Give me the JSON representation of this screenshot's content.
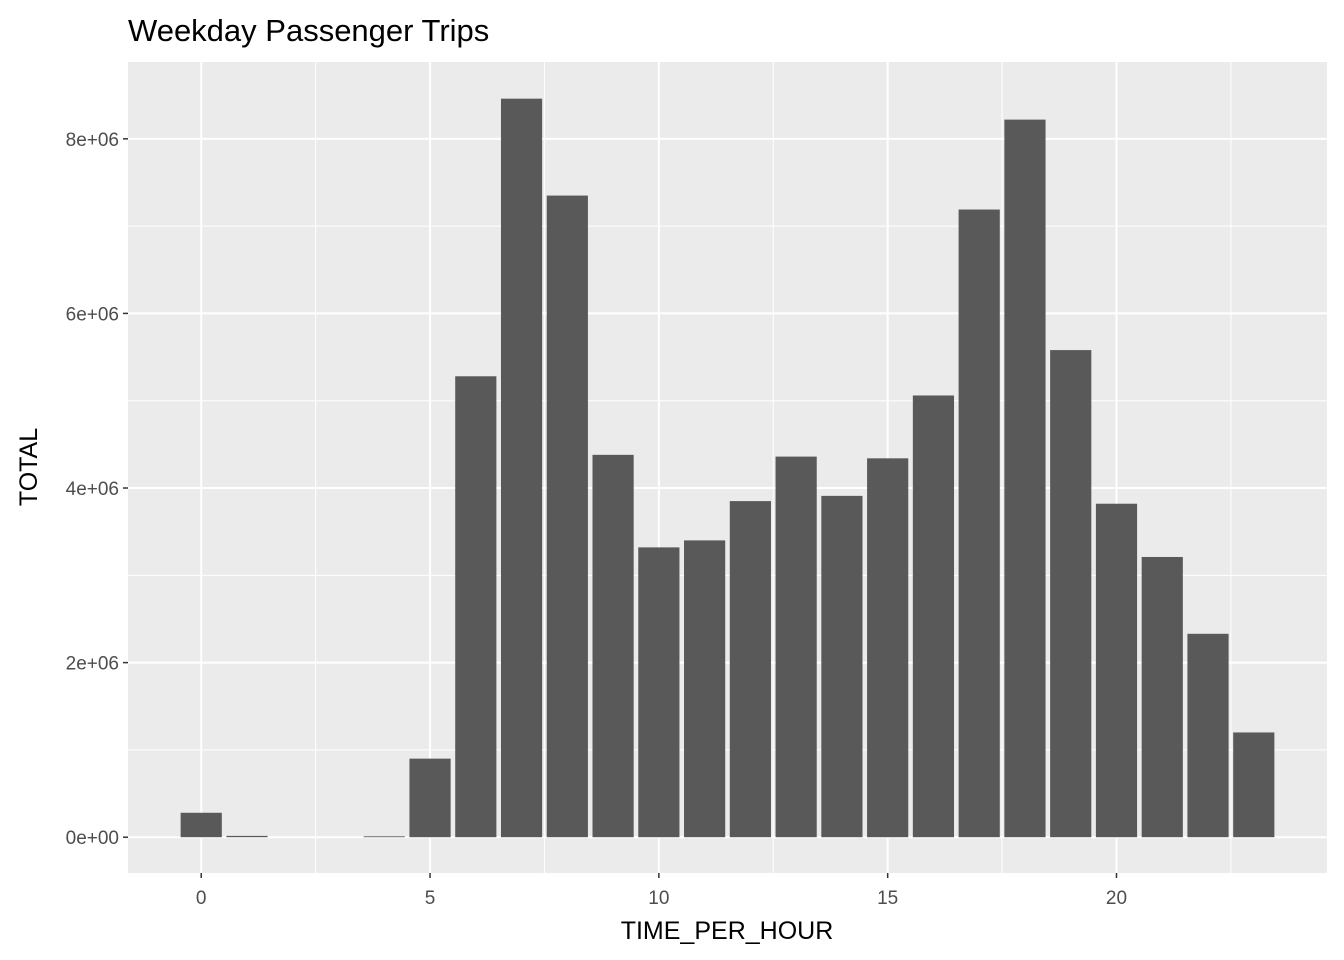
{
  "chart_data": {
    "type": "bar",
    "title": "Weekday Passenger Trips",
    "xlabel": "TIME_PER_HOUR",
    "ylabel": "TOTAL",
    "x": [
      0,
      1,
      4,
      5,
      6,
      7,
      8,
      9,
      10,
      11,
      12,
      13,
      14,
      15,
      16,
      17,
      18,
      19,
      20,
      21,
      22,
      23
    ],
    "values": [
      280000,
      15000,
      10000,
      900000,
      5280000,
      8460000,
      7350000,
      4380000,
      3320000,
      3400000,
      3850000,
      4360000,
      3910000,
      4340000,
      5060000,
      7190000,
      8220000,
      5580000,
      3820000,
      3210000,
      2330000,
      1200000
    ],
    "xlim": [
      -1.6,
      24.6
    ],
    "ylim": [
      -410000,
      8880000
    ],
    "x_ticks": [
      0,
      5,
      10,
      15,
      20
    ],
    "x_tick_labels": [
      "0",
      "5",
      "10",
      "15",
      "20"
    ],
    "y_ticks": [
      0,
      2000000,
      4000000,
      6000000,
      8000000
    ],
    "y_tick_labels": [
      "0e+00",
      "2e+06",
      "4e+06",
      "6e+06",
      "8e+06"
    ],
    "bar_color": "#595959",
    "panel_color": "#ebebeb",
    "grid_color": "#ffffff",
    "grid": true,
    "legend": "none"
  }
}
